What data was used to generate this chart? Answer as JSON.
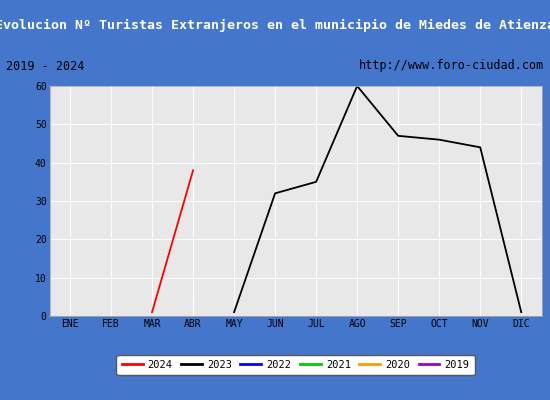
{
  "title": "Evolucion Nº Turistas Extranjeros en el municipio de Miedes de Atienza",
  "subtitle_left": "2019 - 2024",
  "subtitle_right": "http://www.foro-ciudad.com",
  "title_bg_color": "#4477cc",
  "title_text_color": "#ffffff",
  "subtitle_bg_color": "#ffffff",
  "plot_bg_color": "#e8e8e8",
  "fig_bg_color": "#4477cc",
  "x_labels": [
    "ENE",
    "FEB",
    "MAR",
    "ABR",
    "MAY",
    "JUN",
    "JUL",
    "AGO",
    "SEP",
    "OCT",
    "NOV",
    "DIC"
  ],
  "ylim": [
    0,
    60
  ],
  "yticks": [
    0,
    10,
    20,
    30,
    40,
    50,
    60
  ],
  "series": {
    "2024": {
      "color": "#ff0000",
      "data": [
        null,
        null,
        1,
        38,
        null,
        null,
        null,
        null,
        null,
        null,
        null,
        null
      ]
    },
    "2023": {
      "color": "#000000",
      "data": [
        null,
        null,
        null,
        null,
        1,
        32,
        35,
        60,
        47,
        46,
        44,
        1
      ]
    },
    "2022": {
      "color": "#0000ff",
      "data": [
        null,
        null,
        null,
        null,
        null,
        null,
        null,
        null,
        null,
        null,
        null,
        null
      ]
    },
    "2021": {
      "color": "#00cc00",
      "data": [
        null,
        null,
        null,
        null,
        null,
        null,
        null,
        null,
        null,
        null,
        null,
        null
      ]
    },
    "2020": {
      "color": "#ff9900",
      "data": [
        null,
        null,
        null,
        null,
        null,
        null,
        null,
        null,
        null,
        null,
        null,
        null
      ]
    },
    "2019": {
      "color": "#9900cc",
      "data": [
        null,
        null,
        null,
        null,
        null,
        null,
        null,
        null,
        null,
        null,
        null,
        null
      ]
    }
  },
  "legend_order": [
    "2024",
    "2023",
    "2022",
    "2021",
    "2020",
    "2019"
  ]
}
